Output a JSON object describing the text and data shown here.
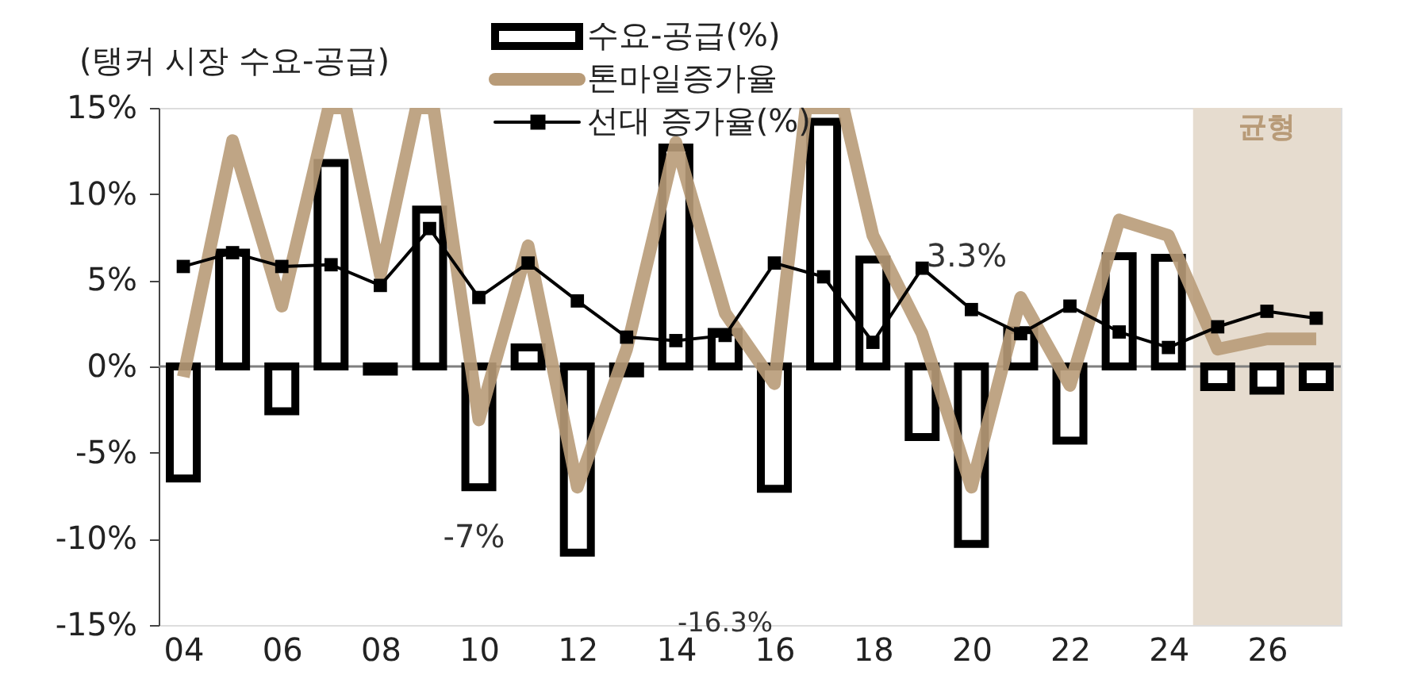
{
  "chart_data": {
    "type": "bar",
    "title": "(탱커 시장 수요-공급)",
    "x": [
      2004,
      2005,
      2006,
      2007,
      2008,
      2009,
      2010,
      2011,
      2012,
      2013,
      2014,
      2015,
      2016,
      2017,
      2018,
      2019,
      2020,
      2021,
      2022,
      2023,
      2024,
      2025,
      2026,
      2027
    ],
    "series": [
      {
        "name": "수요-공급(%)",
        "color": "#ffffff",
        "values": [
          -6.5,
          6.6,
          -2.6,
          11.8,
          -0.3,
          9.1,
          -7,
          1.1,
          -10.8,
          -0.4,
          12.7,
          2.0,
          -7.1,
          14.2,
          6.2,
          -4.1,
          -10.3,
          2.1,
          -4.3,
          6.4,
          6.3,
          -1.2,
          -1.4,
          -1.2
        ]
      },
      {
        "name": "톤마일증가율",
        "type": "line",
        "color": "#b89b78",
        "marker": "none",
        "x": [
          2004,
          2005,
          2006,
          2006.95,
          2007.3,
          2008,
          2008.73,
          2009.08,
          2010,
          2011,
          2012,
          2013,
          2014,
          2015,
          2016,
          2016.64,
          2017.4,
          2018,
          2019,
          2020,
          2021,
          2022,
          2023,
          2024,
          2025,
          2026,
          2027
        ],
        "values": [
          -0.6,
          13.1,
          3.5,
          15,
          15,
          5.3,
          15,
          15,
          -3.1,
          7.0,
          -7.0,
          1.0,
          13.0,
          3.1,
          -1.0,
          15,
          15,
          7.6,
          1.9,
          -7.0,
          4.0,
          -1.1,
          8.5,
          7.6,
          1.0,
          1.6,
          1.6
        ]
      },
      {
        "name": "선대 증가율(%)",
        "type": "line",
        "color": "#000000",
        "marker": "square",
        "values": [
          5.8,
          6.6,
          5.8,
          5.9,
          4.7,
          8.0,
          4.0,
          6.0,
          3.8,
          1.7,
          1.5,
          1.8,
          6.0,
          5.2,
          1.4,
          5.7,
          3.3,
          1.9,
          3.5,
          2.0,
          1.1,
          2.3,
          3.2,
          2.8
        ]
      }
    ],
    "xlim": [
      2003.5,
      2027.5
    ],
    "xticks": [
      {
        "value": 2004,
        "label": "04"
      },
      {
        "value": 2006,
        "label": "06"
      },
      {
        "value": 2008,
        "label": "08"
      },
      {
        "value": 2010,
        "label": "10"
      },
      {
        "value": 2012,
        "label": "12"
      },
      {
        "value": 2014,
        "label": "14"
      },
      {
        "value": 2016,
        "label": "16"
      },
      {
        "value": 2018,
        "label": "18"
      },
      {
        "value": 2020,
        "label": "20"
      },
      {
        "value": 2022,
        "label": "22"
      },
      {
        "value": 2024,
        "label": "24"
      },
      {
        "value": 2026,
        "label": "26"
      }
    ],
    "ylim": [
      -15,
      15
    ],
    "yticks": [
      {
        "value": -15,
        "label": "-15%"
      },
      {
        "value": -10,
        "label": "-10%"
      },
      {
        "value": -5,
        "label": "-5%"
      },
      {
        "value": 0,
        "label": "0%"
      },
      {
        "value": 5,
        "label": "5%"
      },
      {
        "value": 10,
        "label": "10%"
      },
      {
        "value": 15,
        "label": "15%"
      }
    ],
    "bands": [
      {
        "axis": "x",
        "from": 2024.5,
        "to": 2027.5,
        "label": "균형",
        "color": "#e6dccf"
      }
    ],
    "ref_lines": [
      {
        "axis": "y",
        "value": 0,
        "color": "#7f7f7f"
      }
    ],
    "annotations": [
      {
        "text": "3.3%",
        "x": 2020,
        "y": 3.3
      },
      {
        "text": "-7%",
        "x": 2010,
        "y": -7
      },
      "-16.3%"
    ],
    "grid": false,
    "legend": "top"
  }
}
